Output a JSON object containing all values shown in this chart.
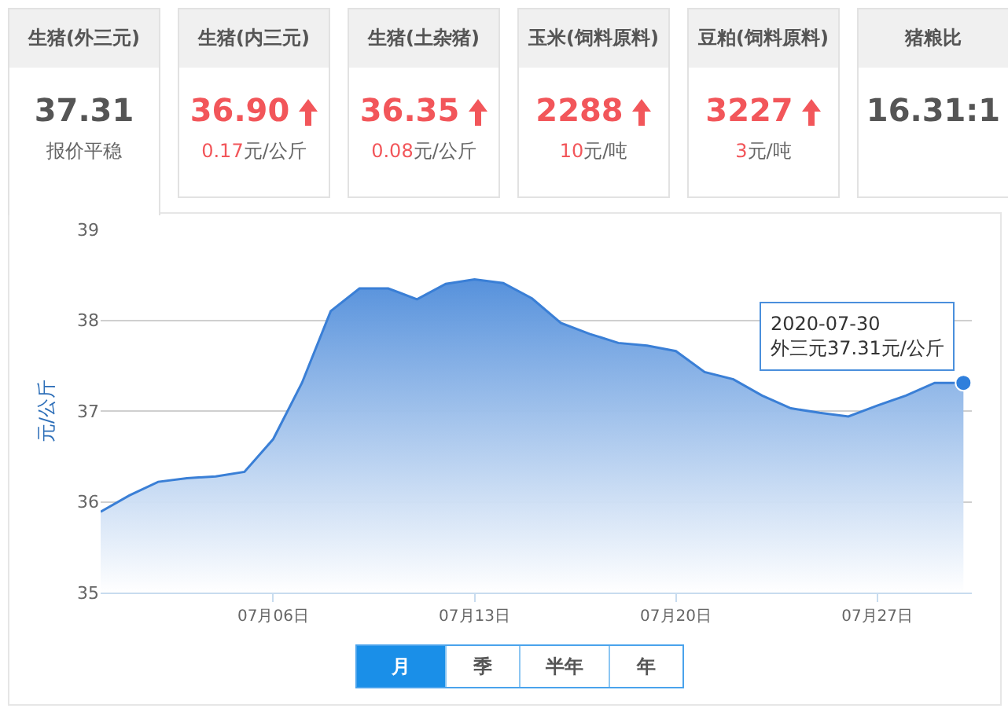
{
  "chart_data": [
    {
      "type": "other",
      "categories": [
        "生猪(外三元)",
        "生猪(内三元)",
        "生猪(土杂猪)",
        "玉米(饲料原料)",
        "豆粕(饲料原料)",
        "猪粮比"
      ],
      "annotations": [
        "37.31",
        "36.90",
        "36.35",
        "2288",
        "3227",
        "16.31:1",
        "报价平稳",
        "0.17元/公斤",
        "0.08元/公斤",
        "10元/吨",
        "3元/吨"
      ]
    },
    {
      "type": "area",
      "ylabel": "元/公斤",
      "x": [
        "2020-06-30",
        "2020-07-01",
        "2020-07-02",
        "2020-07-03",
        "2020-07-04",
        "2020-07-05",
        "2020-07-06",
        "2020-07-07",
        "2020-07-08",
        "2020-07-09",
        "2020-07-10",
        "2020-07-11",
        "2020-07-12",
        "2020-07-13",
        "2020-07-14",
        "2020-07-15",
        "2020-07-16",
        "2020-07-17",
        "2020-07-18",
        "2020-07-19",
        "2020-07-20",
        "2020-07-21",
        "2020-07-22",
        "2020-07-23",
        "2020-07-24",
        "2020-07-25",
        "2020-07-26",
        "2020-07-27",
        "2020-07-28",
        "2020-07-29",
        "2020-07-30"
      ],
      "series": [
        {
          "color": "#3a7fd6",
          "values": [
            35.89,
            36.07,
            36.22,
            36.26,
            36.28,
            36.33,
            36.69,
            37.31,
            38.1,
            38.35,
            38.35,
            38.23,
            38.4,
            38.45,
            38.41,
            38.24,
            37.97,
            37.85,
            37.75,
            37.72,
            37.66,
            37.43,
            37.35,
            37.17,
            37.03,
            36.98,
            36.94,
            37.06,
            37.17,
            37.31,
            37.31
          ]
        }
      ],
      "xlim": [
        "2020-06-30",
        "2020-07-30T07:00"
      ],
      "xticks": [
        {
          "value": "2020-07-06",
          "label": "07月06日"
        },
        {
          "value": "2020-07-13",
          "label": "07月13日"
        },
        {
          "value": "2020-07-20",
          "label": "07月20日"
        },
        {
          "value": "2020-07-27",
          "label": "07月27日"
        }
      ],
      "ylim": [
        35,
        39
      ],
      "yticks": [
        35,
        36,
        37,
        38,
        39
      ],
      "grid": "y",
      "annotations": [
        {
          "text": "2020-07-30\n外三元37.31元/公斤",
          "x": "2020-07-30",
          "y": 37.31
        },
        "月",
        "季",
        "半年",
        "年"
      ]
    }
  ]
}
